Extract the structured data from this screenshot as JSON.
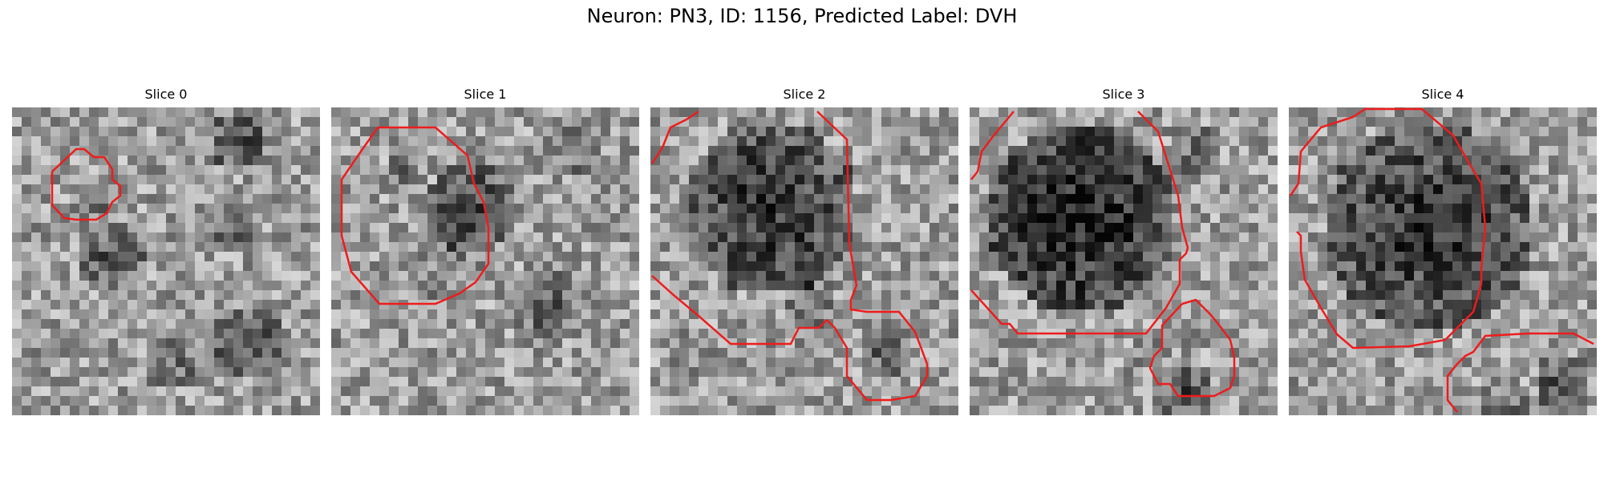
{
  "figure": {
    "title": "Neuron: PN3, ID: 1156, Predicted Label: DVH"
  },
  "panels": [
    {
      "title": "Slice 0",
      "seed": 11
    },
    {
      "title": "Slice 1",
      "seed": 23
    },
    {
      "title": "Slice 2",
      "seed": 37
    },
    {
      "title": "Slice 3",
      "seed": 41
    },
    {
      "title": "Slice 4",
      "seed": 53
    }
  ],
  "colors": {
    "contour": "#ee1c1c",
    "background": "#ffffff"
  }
}
